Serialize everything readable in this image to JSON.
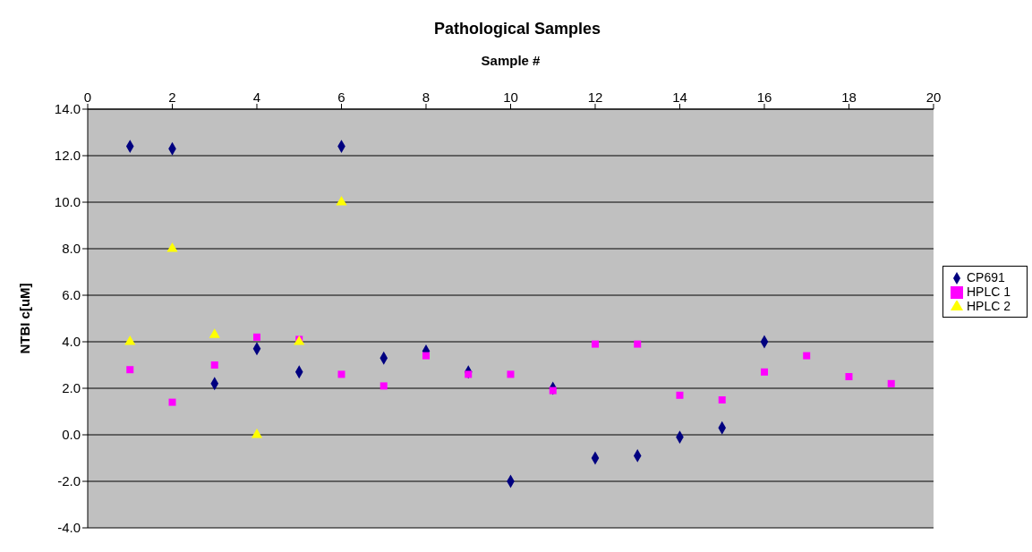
{
  "chart_data": {
    "type": "scatter",
    "title": "Pathological Samples",
    "xlabel": "Sample #",
    "ylabel": "NTBI c[uM]",
    "xlim": [
      0,
      20
    ],
    "xticks": [
      0,
      2,
      4,
      6,
      8,
      10,
      12,
      14,
      16,
      18,
      20
    ],
    "ylim": [
      -4,
      14
    ],
    "yticks": [
      {
        "value": -4,
        "label": "-4.0"
      },
      {
        "value": -2,
        "label": "-2.0"
      },
      {
        "value": 0,
        "label": "0.0"
      },
      {
        "value": 2,
        "label": "2.0"
      },
      {
        "value": 4,
        "label": "4.0"
      },
      {
        "value": 6,
        "label": "6.0"
      },
      {
        "value": 8,
        "label": "8.0"
      },
      {
        "value": 10,
        "label": "10.0"
      },
      {
        "value": 12,
        "label": "12.0"
      },
      {
        "value": 14,
        "label": "14.0"
      }
    ],
    "grid": "y",
    "legend": "right",
    "series": [
      {
        "name": "CP691",
        "color": "#000080",
        "marker": "diamond",
        "x": [
          1,
          2,
          3,
          4,
          5,
          6,
          7,
          8,
          9,
          10,
          11,
          12,
          13,
          14,
          15,
          16
        ],
        "values": [
          12.4,
          12.3,
          2.2,
          3.7,
          2.7,
          12.4,
          3.3,
          3.6,
          2.7,
          -2.0,
          2.0,
          -1.0,
          -0.9,
          -0.1,
          0.3,
          4.0
        ]
      },
      {
        "name": "HPLC 1",
        "color": "#ff00ff",
        "marker": "square",
        "x": [
          1,
          2,
          3,
          4,
          5,
          6,
          7,
          8,
          9,
          10,
          11,
          12,
          13,
          14,
          15,
          16,
          17,
          18,
          19
        ],
        "values": [
          2.8,
          1.4,
          3.0,
          4.2,
          4.1,
          2.6,
          2.1,
          3.4,
          2.6,
          2.6,
          1.9,
          3.9,
          3.9,
          1.7,
          1.5,
          2.7,
          3.4,
          2.5,
          2.2
        ]
      },
      {
        "name": "HPLC 2",
        "color": "#ffff00",
        "marker": "triangle",
        "x": [
          1,
          2,
          3,
          4,
          5,
          6
        ],
        "values": [
          4.0,
          8.0,
          4.3,
          0.0,
          4.0,
          10.0
        ]
      }
    ]
  }
}
